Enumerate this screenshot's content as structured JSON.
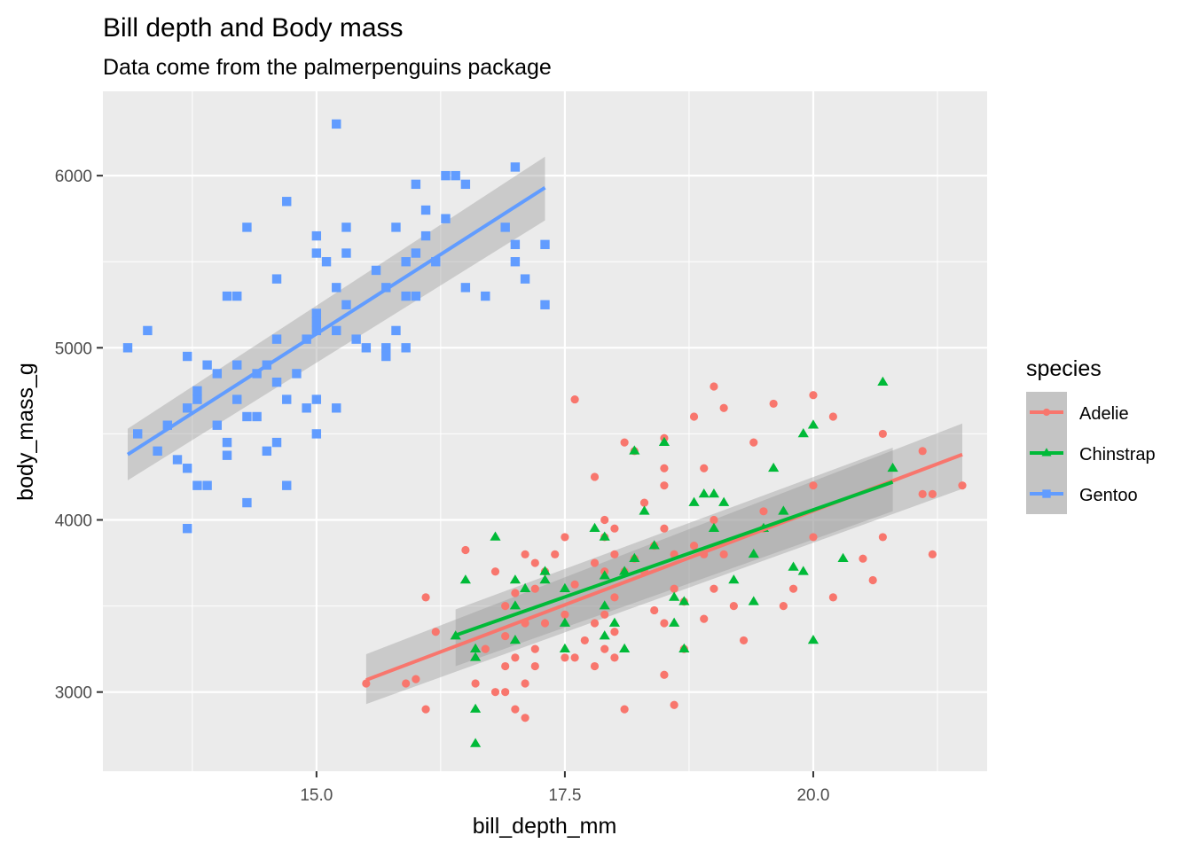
{
  "chart_data": {
    "type": "scatter",
    "title": "Bill depth and Body mass",
    "subtitle": "Data come from the palmerpenguins package",
    "xlabel": "bill_depth_mm",
    "ylabel": "body_mass_g",
    "xlim": [
      12.85,
      21.75
    ],
    "ylim": [
      2540,
      6490
    ],
    "x_ticks": [
      15.0,
      17.5,
      20.0
    ],
    "x_tick_labels": [
      "15.0",
      "17.5",
      "20.0"
    ],
    "y_ticks": [
      3000,
      4000,
      5000,
      6000
    ],
    "y_tick_labels": [
      "3000",
      "4000",
      "5000",
      "6000"
    ],
    "grid": true,
    "legend": {
      "title": "species",
      "placement": "right"
    },
    "series": [
      {
        "name": "Adelie",
        "color": "#F8766D",
        "shape": "circle",
        "trend": {
          "x": [
            15.5,
            21.5
          ],
          "y": [
            3070,
            4380
          ],
          "ci_lower": [
            2930,
            4180
          ],
          "ci_upper": [
            3220,
            4560
          ]
        },
        "points": [
          [
            15.5,
            3050
          ],
          [
            15.9,
            3050
          ],
          [
            16.0,
            3075
          ],
          [
            16.1,
            3550
          ],
          [
            16.1,
            2900
          ],
          [
            16.2,
            3350
          ],
          [
            16.5,
            3825
          ],
          [
            16.6,
            3050
          ],
          [
            16.7,
            3250
          ],
          [
            16.8,
            3700
          ],
          [
            16.8,
            3000
          ],
          [
            16.9,
            3500
          ],
          [
            16.9,
            3325
          ],
          [
            16.9,
            3150
          ],
          [
            16.9,
            3000
          ],
          [
            17.0,
            3575
          ],
          [
            17.0,
            3200
          ],
          [
            17.0,
            2900
          ],
          [
            17.1,
            3800
          ],
          [
            17.1,
            3400
          ],
          [
            17.1,
            3050
          ],
          [
            17.1,
            2850
          ],
          [
            17.2,
            3750
          ],
          [
            17.2,
            3600
          ],
          [
            17.2,
            3250
          ],
          [
            17.2,
            3150
          ],
          [
            17.3,
            3700
          ],
          [
            17.3,
            3400
          ],
          [
            17.4,
            3800
          ],
          [
            17.5,
            3900
          ],
          [
            17.5,
            3450
          ],
          [
            17.5,
            3200
          ],
          [
            17.6,
            4700
          ],
          [
            17.6,
            3625
          ],
          [
            17.6,
            3200
          ],
          [
            17.7,
            3300
          ],
          [
            17.8,
            4250
          ],
          [
            17.8,
            3750
          ],
          [
            17.8,
            3400
          ],
          [
            17.8,
            3150
          ],
          [
            17.9,
            4000
          ],
          [
            17.9,
            3900
          ],
          [
            17.9,
            3700
          ],
          [
            17.9,
            3450
          ],
          [
            17.9,
            3250
          ],
          [
            18.0,
            3950
          ],
          [
            18.0,
            3800
          ],
          [
            18.0,
            3550
          ],
          [
            18.0,
            3350
          ],
          [
            18.0,
            3200
          ],
          [
            18.1,
            4450
          ],
          [
            18.1,
            3700
          ],
          [
            18.1,
            2900
          ],
          [
            18.2,
            4400
          ],
          [
            18.2,
            3775
          ],
          [
            18.3,
            4100
          ],
          [
            18.3,
            3700
          ],
          [
            18.4,
            3850
          ],
          [
            18.4,
            3475
          ],
          [
            18.5,
            4475
          ],
          [
            18.5,
            4300
          ],
          [
            18.5,
            4200
          ],
          [
            18.5,
            3950
          ],
          [
            18.5,
            3400
          ],
          [
            18.5,
            3100
          ],
          [
            18.6,
            3800
          ],
          [
            18.6,
            3600
          ],
          [
            18.6,
            2925
          ],
          [
            18.7,
            3525
          ],
          [
            18.7,
            3250
          ],
          [
            18.8,
            4600
          ],
          [
            18.8,
            3850
          ],
          [
            18.9,
            4300
          ],
          [
            18.9,
            3800
          ],
          [
            18.9,
            3425
          ],
          [
            19.0,
            4775
          ],
          [
            19.0,
            4000
          ],
          [
            19.0,
            3600
          ],
          [
            19.1,
            4650
          ],
          [
            19.1,
            3800
          ],
          [
            19.2,
            3500
          ],
          [
            19.3,
            3300
          ],
          [
            19.4,
            4450
          ],
          [
            19.5,
            4050
          ],
          [
            19.5,
            3950
          ],
          [
            19.6,
            4675
          ],
          [
            19.7,
            3500
          ],
          [
            19.8,
            3600
          ],
          [
            20.0,
            4725
          ],
          [
            20.0,
            3900
          ],
          [
            20.0,
            4200
          ],
          [
            20.2,
            4600
          ],
          [
            20.2,
            3550
          ],
          [
            20.5,
            3775
          ],
          [
            20.6,
            3650
          ],
          [
            20.7,
            4500
          ],
          [
            20.7,
            3900
          ],
          [
            21.1,
            4400
          ],
          [
            21.1,
            4150
          ],
          [
            21.2,
            4150
          ],
          [
            21.2,
            3800
          ],
          [
            21.5,
            4200
          ]
        ]
      },
      {
        "name": "Chinstrap",
        "color": "#00BA38",
        "shape": "triangle",
        "trend": {
          "x": [
            16.4,
            20.8
          ],
          "y": [
            3330,
            4220
          ],
          "ci_lower": [
            3150,
            4050
          ],
          "ci_upper": [
            3480,
            4420
          ]
        },
        "points": [
          [
            16.4,
            3325
          ],
          [
            16.6,
            3250
          ],
          [
            16.6,
            3200
          ],
          [
            16.6,
            2900
          ],
          [
            16.6,
            2700
          ],
          [
            16.5,
            3650
          ],
          [
            16.8,
            3900
          ],
          [
            17.0,
            3650
          ],
          [
            17.0,
            3500
          ],
          [
            17.0,
            3300
          ],
          [
            17.1,
            3600
          ],
          [
            17.3,
            3700
          ],
          [
            17.3,
            3650
          ],
          [
            17.5,
            3600
          ],
          [
            17.5,
            3400
          ],
          [
            17.5,
            3250
          ],
          [
            17.8,
            3950
          ],
          [
            17.9,
            3900
          ],
          [
            17.9,
            3675
          ],
          [
            17.9,
            3500
          ],
          [
            17.9,
            3325
          ],
          [
            18.0,
            3400
          ],
          [
            18.1,
            3700
          ],
          [
            18.1,
            3250
          ],
          [
            18.2,
            4400
          ],
          [
            18.2,
            3775
          ],
          [
            18.3,
            4050
          ],
          [
            18.4,
            3850
          ],
          [
            18.5,
            4450
          ],
          [
            18.6,
            3550
          ],
          [
            18.6,
            3400
          ],
          [
            18.7,
            3525
          ],
          [
            18.7,
            3250
          ],
          [
            18.8,
            4100
          ],
          [
            18.9,
            4150
          ],
          [
            19.0,
            4150
          ],
          [
            19.0,
            3950
          ],
          [
            19.1,
            4100
          ],
          [
            19.2,
            3650
          ],
          [
            19.4,
            3800
          ],
          [
            19.4,
            3525
          ],
          [
            19.5,
            3950
          ],
          [
            19.6,
            4300
          ],
          [
            19.7,
            4050
          ],
          [
            19.8,
            3725
          ],
          [
            19.9,
            3700
          ],
          [
            19.9,
            4500
          ],
          [
            20.0,
            4550
          ],
          [
            20.0,
            3300
          ],
          [
            20.3,
            3775
          ],
          [
            20.7,
            4800
          ],
          [
            20.8,
            4300
          ]
        ]
      },
      {
        "name": "Gentoo",
        "color": "#619CFF",
        "shape": "square",
        "trend": {
          "x": [
            13.1,
            17.3
          ],
          "y": [
            4380,
            5930
          ],
          "ci_lower": [
            4230,
            5740
          ],
          "ci_upper": [
            4530,
            6110
          ]
        },
        "points": [
          [
            13.1,
            5000
          ],
          [
            13.2,
            4500
          ],
          [
            13.3,
            5100
          ],
          [
            13.4,
            4400
          ],
          [
            13.5,
            4550
          ],
          [
            13.6,
            4350
          ],
          [
            13.7,
            4650
          ],
          [
            13.7,
            4950
          ],
          [
            13.7,
            4300
          ],
          [
            13.7,
            3950
          ],
          [
            13.8,
            4700
          ],
          [
            13.8,
            4750
          ],
          [
            13.8,
            4200
          ],
          [
            13.9,
            4200
          ],
          [
            13.9,
            4900
          ],
          [
            14.0,
            4550
          ],
          [
            14.0,
            4850
          ],
          [
            14.1,
            5300
          ],
          [
            14.1,
            4450
          ],
          [
            14.1,
            4375
          ],
          [
            14.2,
            5300
          ],
          [
            14.2,
            4900
          ],
          [
            14.2,
            4700
          ],
          [
            14.3,
            5700
          ],
          [
            14.3,
            4600
          ],
          [
            14.3,
            4100
          ],
          [
            14.4,
            4850
          ],
          [
            14.4,
            4600
          ],
          [
            14.5,
            4900
          ],
          [
            14.5,
            4400
          ],
          [
            14.6,
            5400
          ],
          [
            14.6,
            5050
          ],
          [
            14.6,
            4800
          ],
          [
            14.6,
            4450
          ],
          [
            14.7,
            5850
          ],
          [
            14.7,
            4700
          ],
          [
            14.7,
            4200
          ],
          [
            14.8,
            4850
          ],
          [
            14.9,
            5050
          ],
          [
            14.9,
            4650
          ],
          [
            15.0,
            5200
          ],
          [
            15.0,
            5150
          ],
          [
            15.0,
            5100
          ],
          [
            15.0,
            5650
          ],
          [
            15.0,
            5550
          ],
          [
            15.0,
            4700
          ],
          [
            15.0,
            4500
          ],
          [
            15.1,
            5500
          ],
          [
            15.2,
            5350
          ],
          [
            15.2,
            5100
          ],
          [
            15.2,
            4650
          ],
          [
            15.2,
            6300
          ],
          [
            15.3,
            5700
          ],
          [
            15.3,
            5550
          ],
          [
            15.3,
            5250
          ],
          [
            15.4,
            5050
          ],
          [
            15.5,
            5000
          ],
          [
            15.6,
            5450
          ],
          [
            15.7,
            5350
          ],
          [
            15.7,
            5000
          ],
          [
            15.7,
            4950
          ],
          [
            15.8,
            5100
          ],
          [
            15.8,
            5700
          ],
          [
            15.9,
            5500
          ],
          [
            15.9,
            5300
          ],
          [
            15.9,
            5000
          ],
          [
            16.0,
            5950
          ],
          [
            16.0,
            5550
          ],
          [
            16.0,
            5300
          ],
          [
            16.1,
            5800
          ],
          [
            16.1,
            5650
          ],
          [
            16.2,
            5500
          ],
          [
            16.3,
            6000
          ],
          [
            16.3,
            5750
          ],
          [
            16.4,
            6000
          ],
          [
            16.5,
            5950
          ],
          [
            16.5,
            5350
          ],
          [
            16.7,
            5300
          ],
          [
            16.9,
            5700
          ],
          [
            17.0,
            5600
          ],
          [
            17.0,
            6050
          ],
          [
            17.0,
            5500
          ],
          [
            17.1,
            5400
          ],
          [
            17.3,
            5250
          ],
          [
            17.3,
            5600
          ]
        ]
      }
    ]
  }
}
